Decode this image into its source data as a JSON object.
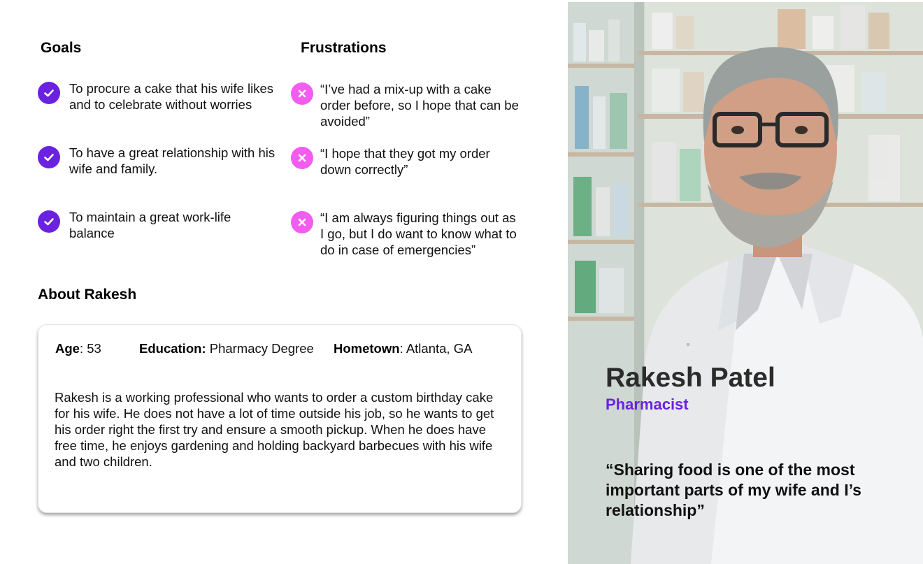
{
  "goals": {
    "title": "Goals",
    "items": [
      "To procure a cake that his wife likes and to celebrate without worries",
      "To have a great relationship with his wife and family.",
      "To maintain a great work-life balance"
    ]
  },
  "frustrations": {
    "title": "Frustrations",
    "items": [
      "“I’ve had a mix-up with a cake order before, so I hope that can be avoided”",
      "“I hope that they got my order down correctly”",
      "“I am always figuring things out as I go, but I do want to know what to do in case of emergencies”"
    ]
  },
  "about": {
    "title": "About Rakesh",
    "age_label": "Age",
    "age_value": ": 53",
    "education_label": "Education:",
    "education_value": " Pharmacy Degree",
    "hometown_label": "Hometown",
    "hometown_value": ": Atlanta, GA",
    "bio": "Rakesh is a working professional who wants to order a custom birthday cake for his wife. He does not have a lot of time outside his job, so he wants to get his order right the first try and ensure a smooth pickup. When he does have free time, he enjoys gardening and holding backyard barbecues with his wife and two children."
  },
  "persona": {
    "name": "Rakesh Patel",
    "role": "Pharmacist",
    "quote": "“Sharing food is one of the most important parts of my wife and I’s relationship”"
  },
  "colors": {
    "goal_icon": "#6a22e0",
    "frustration_icon": "#f25cef",
    "role_text": "#6a22e0"
  },
  "icons": {
    "goal": "check-circle-icon",
    "frustration": "x-circle-icon"
  }
}
